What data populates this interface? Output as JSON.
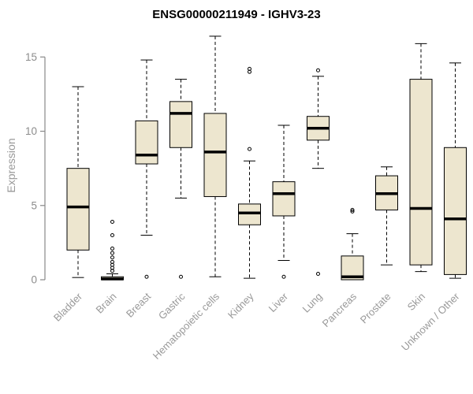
{
  "chart_data": {
    "type": "boxplot",
    "title": "ENSG00000211949 - IGHV3-23",
    "ylabel": "Expression",
    "ylim": [
      0,
      16.45
    ],
    "yticks": [
      0,
      5,
      10,
      15
    ],
    "grid": false,
    "box_fill": "#ede6cf",
    "box_stroke": "#000000",
    "axis_color": "#888888",
    "tick_label_color": "#8c8c8c",
    "category_label_color": "#999999",
    "categories": [
      "Bladder",
      "Brain",
      "Breast",
      "Gastric",
      "Hematopoietic cells",
      "Kidney",
      "Liver",
      "Lung",
      "Pancreas",
      "Prostate",
      "Skin",
      "Unknown / Other"
    ],
    "series": [
      {
        "category": "Bladder",
        "low": 0.15,
        "q1": 2.0,
        "median": 4.9,
        "q3": 7.5,
        "high": 13.0,
        "outliers": []
      },
      {
        "category": "Brain",
        "low": 0.0,
        "q1": 0.0,
        "median": 0.05,
        "q3": 0.2,
        "high": 0.4,
        "outliers": [
          0.6,
          0.8,
          1.0,
          1.2,
          1.5,
          1.8,
          2.1,
          3.0,
          3.9
        ]
      },
      {
        "category": "Breast",
        "low": 3.0,
        "q1": 7.8,
        "median": 8.4,
        "q3": 10.7,
        "high": 14.8,
        "outliers": [
          0.2
        ]
      },
      {
        "category": "Gastric",
        "low": 5.5,
        "q1": 8.9,
        "median": 11.2,
        "q3": 12.0,
        "high": 13.5,
        "outliers": [
          0.2
        ]
      },
      {
        "category": "Hematopoietic cells",
        "low": 0.2,
        "q1": 5.6,
        "median": 8.6,
        "q3": 11.2,
        "high": 16.4,
        "outliers": []
      },
      {
        "category": "Kidney",
        "low": 0.1,
        "q1": 3.7,
        "median": 4.5,
        "q3": 5.1,
        "high": 8.0,
        "outliers": [
          8.8,
          14.0,
          14.2
        ]
      },
      {
        "category": "Liver",
        "low": 1.3,
        "q1": 4.3,
        "median": 5.8,
        "q3": 6.6,
        "high": 10.4,
        "outliers": [
          0.2
        ]
      },
      {
        "category": "Lung",
        "low": 7.5,
        "q1": 9.4,
        "median": 10.2,
        "q3": 11.0,
        "high": 13.7,
        "outliers": [
          14.1,
          0.4
        ]
      },
      {
        "category": "Pancreas",
        "low": 0.0,
        "q1": 0.0,
        "median": 0.2,
        "q3": 1.6,
        "high": 3.1,
        "outliers": [
          4.6,
          4.7
        ]
      },
      {
        "category": "Prostate",
        "low": 1.0,
        "q1": 4.7,
        "median": 5.8,
        "q3": 7.0,
        "high": 7.6,
        "outliers": []
      },
      {
        "category": "Skin",
        "low": 0.55,
        "q1": 1.0,
        "median": 4.8,
        "q3": 13.5,
        "high": 15.9,
        "outliers": []
      },
      {
        "category": "Unknown / Other",
        "low": 0.1,
        "q1": 0.35,
        "median": 4.1,
        "q3": 8.9,
        "high": 14.6,
        "outliers": []
      }
    ]
  }
}
